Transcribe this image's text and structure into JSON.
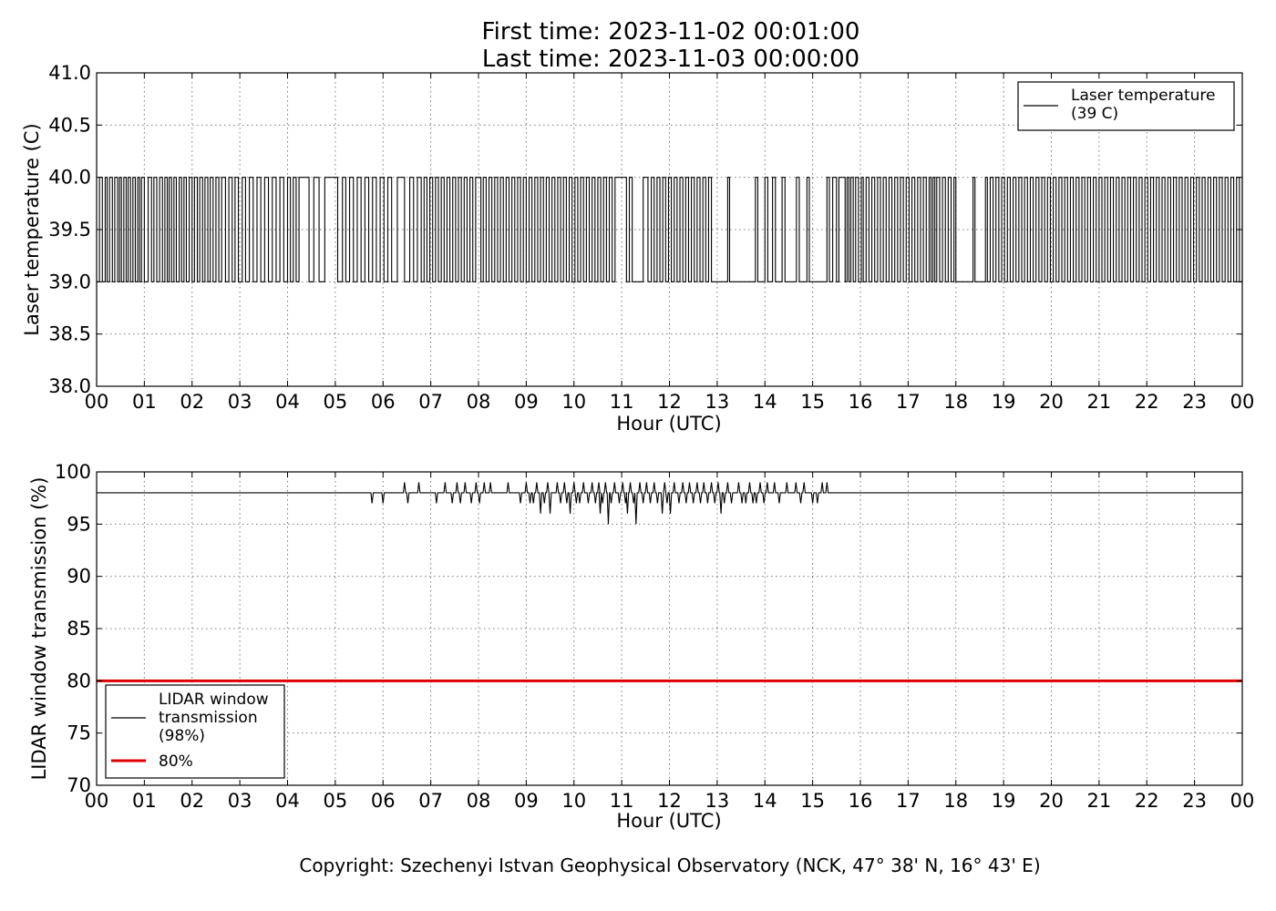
{
  "title_lines": [
    "First time: 2023-11-02 00:01:00",
    "Last time: 2023-11-03 00:00:00"
  ],
  "copyright": "Copyright: Szechenyi Istvan Geophysical Observatory (NCK, 47° 38' N, 16° 43' E)",
  "colors": {
    "series": "#000000",
    "threshold": "#e00000",
    "grid": "#7a7a7a"
  },
  "chart_data": [
    {
      "type": "line",
      "xlabel": "Hour (UTC)",
      "ylabel": "Laser temperature (C)",
      "xlim": [
        0,
        24
      ],
      "ylim": [
        38.0,
        41.0
      ],
      "x_tick_values": [
        0,
        1,
        2,
        3,
        4,
        5,
        6,
        7,
        8,
        9,
        10,
        11,
        12,
        13,
        14,
        15,
        16,
        17,
        18,
        19,
        20,
        21,
        22,
        23,
        24
      ],
      "x_tick_labels": [
        "00",
        "01",
        "02",
        "03",
        "04",
        "05",
        "06",
        "07",
        "08",
        "09",
        "10",
        "11",
        "12",
        "13",
        "14",
        "15",
        "16",
        "17",
        "18",
        "19",
        "20",
        "21",
        "22",
        "23",
        "00"
      ],
      "y_tick_values": [
        38.0,
        38.5,
        39.0,
        39.5,
        40.0,
        40.5,
        41.0
      ],
      "y_tick_labels": [
        "38.0",
        "38.5",
        "39.0",
        "39.5",
        "40.0",
        "40.5",
        "41.0"
      ],
      "grid": true,
      "legend_position": "top-right",
      "series": [
        {
          "name": "Laser temperature\n(39 C)",
          "color": "#000000",
          "kind": "binary-toggle",
          "levels": [
            39.0,
            40.0
          ],
          "toggle_times": [
            0.0,
            0.06,
            0.12,
            0.18,
            0.22,
            0.27,
            0.33,
            0.38,
            0.44,
            0.48,
            0.52,
            0.57,
            0.62,
            0.66,
            0.71,
            0.76,
            0.81,
            0.86,
            0.9,
            0.94,
            1.0,
            1.08,
            1.15,
            1.2,
            1.26,
            1.32,
            1.38,
            1.43,
            1.48,
            1.52,
            1.57,
            1.62,
            1.67,
            1.73,
            1.78,
            1.83,
            1.88,
            1.94,
            2.0,
            2.05,
            2.11,
            2.16,
            2.22,
            2.27,
            2.33,
            2.38,
            2.44,
            2.5,
            2.56,
            2.62,
            2.7,
            2.77,
            2.84,
            2.9,
            2.97,
            3.05,
            3.12,
            3.2,
            3.28,
            3.36,
            3.44,
            3.52,
            3.6,
            3.68,
            3.76,
            3.84,
            3.92,
            4.0,
            4.06,
            4.12,
            4.18,
            4.24,
            4.45,
            4.55,
            4.66,
            4.78,
            5.05,
            5.15,
            5.22,
            5.3,
            5.38,
            5.46,
            5.54,
            5.62,
            5.7,
            5.78,
            5.86,
            5.94,
            6.02,
            6.1,
            6.18,
            6.3,
            6.45,
            6.56,
            6.64,
            6.72,
            6.8,
            6.86,
            6.92,
            6.98,
            7.04,
            7.1,
            7.16,
            7.22,
            7.28,
            7.34,
            7.4,
            7.46,
            7.52,
            7.58,
            7.64,
            7.7,
            7.76,
            7.82,
            7.88,
            7.94,
            8.05,
            8.1,
            8.16,
            8.22,
            8.28,
            8.34,
            8.4,
            8.46,
            8.52,
            8.58,
            8.64,
            8.7,
            8.76,
            8.82,
            8.88,
            8.94,
            9.0,
            9.06,
            9.12,
            9.18,
            9.24,
            9.3,
            9.36,
            9.42,
            9.48,
            9.54,
            9.6,
            9.66,
            9.72,
            9.78,
            9.84,
            9.9,
            9.96,
            10.02,
            10.08,
            10.14,
            10.2,
            10.26,
            10.32,
            10.38,
            10.44,
            10.5,
            10.56,
            10.62,
            10.68,
            10.74,
            10.8,
            10.86,
            11.1,
            11.16,
            11.22,
            11.45,
            11.55,
            11.62,
            11.68,
            11.74,
            11.8,
            11.86,
            11.92,
            11.98,
            12.04,
            12.1,
            12.16,
            12.22,
            12.28,
            12.34,
            12.4,
            12.46,
            12.52,
            12.58,
            12.64,
            12.7,
            12.76,
            12.82,
            12.88,
            13.22,
            13.26,
            13.8,
            13.85,
            14.0,
            14.06,
            14.16,
            14.22,
            14.36,
            14.42,
            14.66,
            14.72,
            14.88,
            14.93,
            15.3,
            15.35,
            15.42,
            15.5,
            15.55,
            15.68,
            15.72,
            15.76,
            15.8,
            15.85,
            15.9,
            15.96,
            16.02,
            16.06,
            16.12,
            16.18,
            16.24,
            16.3,
            16.36,
            16.42,
            16.48,
            16.54,
            16.6,
            16.66,
            16.72,
            16.78,
            16.84,
            16.9,
            16.96,
            17.02,
            17.08,
            17.14,
            17.2,
            17.26,
            17.32,
            17.38,
            17.44,
            17.48,
            17.52,
            17.56,
            17.6,
            17.66,
            17.72,
            17.78,
            17.84,
            17.9,
            17.96,
            18.0,
            18.36,
            18.4,
            18.62,
            18.66,
            18.72,
            18.78,
            18.84,
            18.9,
            18.96,
            19.02,
            19.08,
            19.14,
            19.2,
            19.26,
            19.32,
            19.38,
            19.44,
            19.5,
            19.56,
            19.62,
            19.68,
            19.74,
            19.8,
            19.86,
            19.92,
            19.98,
            20.04,
            20.1,
            20.16,
            20.22,
            20.28,
            20.34,
            20.4,
            20.46,
            20.52,
            20.58,
            20.64,
            20.7,
            20.76,
            20.82,
            20.88,
            20.94,
            21.0,
            21.06,
            21.12,
            21.18,
            21.24,
            21.3,
            21.36,
            21.42,
            21.48,
            21.54,
            21.6,
            21.66,
            21.72,
            21.78,
            21.84,
            21.9,
            21.96,
            22.02,
            22.08,
            22.14,
            22.2,
            22.26,
            22.32,
            22.38,
            22.44,
            22.5,
            22.56,
            22.62,
            22.68,
            22.74,
            22.8,
            22.86,
            22.92,
            22.98,
            23.04,
            23.1,
            23.16,
            23.22,
            23.28,
            23.34,
            23.4,
            23.46,
            23.52,
            23.58,
            23.64,
            23.7,
            23.76,
            23.82,
            23.88,
            23.94,
            24.0
          ]
        }
      ]
    },
    {
      "type": "line",
      "xlabel": "Hour (UTC)",
      "ylabel": "LIDAR window transmission (%)",
      "xlim": [
        0,
        24
      ],
      "ylim": [
        70,
        100
      ],
      "x_tick_values": [
        0,
        1,
        2,
        3,
        4,
        5,
        6,
        7,
        8,
        9,
        10,
        11,
        12,
        13,
        14,
        15,
        16,
        17,
        18,
        19,
        20,
        21,
        22,
        23,
        24
      ],
      "x_tick_labels": [
        "00",
        "01",
        "02",
        "03",
        "04",
        "05",
        "06",
        "07",
        "08",
        "09",
        "10",
        "11",
        "12",
        "13",
        "14",
        "15",
        "16",
        "17",
        "18",
        "19",
        "20",
        "21",
        "22",
        "23",
        "00"
      ],
      "y_tick_values": [
        70,
        75,
        80,
        85,
        90,
        95,
        100
      ],
      "y_tick_labels": [
        "70",
        "75",
        "80",
        "85",
        "90",
        "95",
        "100"
      ],
      "grid": true,
      "legend_position": "bottom-left",
      "series": [
        {
          "name": "LIDAR window\ntransmission\n(98%)",
          "color": "#000000",
          "baseline": 98,
          "spikes": [
            [
              5.77,
              97
            ],
            [
              6.0,
              97
            ],
            [
              6.45,
              99
            ],
            [
              6.52,
              97
            ],
            [
              6.75,
              99
            ],
            [
              6.9,
              98
            ],
            [
              7.12,
              97
            ],
            [
              7.3,
              99
            ],
            [
              7.45,
              97
            ],
            [
              7.55,
              99
            ],
            [
              7.62,
              97
            ],
            [
              7.72,
              99
            ],
            [
              7.85,
              97
            ],
            [
              7.95,
              99
            ],
            [
              8.02,
              97
            ],
            [
              8.12,
              99
            ],
            [
              8.25,
              99
            ],
            [
              8.4,
              98
            ],
            [
              8.62,
              99
            ],
            [
              8.88,
              97
            ],
            [
              9.0,
              99
            ],
            [
              9.08,
              97
            ],
            [
              9.15,
              97
            ],
            [
              9.22,
              99
            ],
            [
              9.3,
              96
            ],
            [
              9.38,
              97
            ],
            [
              9.45,
              99
            ],
            [
              9.5,
              96
            ],
            [
              9.58,
              98
            ],
            [
              9.65,
              99
            ],
            [
              9.72,
              97
            ],
            [
              9.8,
              99
            ],
            [
              9.85,
              97
            ],
            [
              9.92,
              96
            ],
            [
              10.0,
              99
            ],
            [
              10.05,
              97
            ],
            [
              10.12,
              97
            ],
            [
              10.2,
              99
            ],
            [
              10.3,
              97
            ],
            [
              10.38,
              99
            ],
            [
              10.45,
              97
            ],
            [
              10.52,
              99
            ],
            [
              10.55,
              96
            ],
            [
              10.6,
              97
            ],
            [
              10.66,
              99
            ],
            [
              10.72,
              95
            ],
            [
              10.78,
              97
            ],
            [
              10.85,
              99
            ],
            [
              10.95,
              97
            ],
            [
              11.02,
              99
            ],
            [
              11.08,
              97
            ],
            [
              11.12,
              96
            ],
            [
              11.18,
              99
            ],
            [
              11.25,
              97
            ],
            [
              11.3,
              95
            ],
            [
              11.38,
              99
            ],
            [
              11.45,
              97
            ],
            [
              11.52,
              99
            ],
            [
              11.6,
              97
            ],
            [
              11.68,
              99
            ],
            [
              11.75,
              97
            ],
            [
              11.85,
              96
            ],
            [
              11.9,
              99
            ],
            [
              11.95,
              97
            ],
            [
              12.02,
              96
            ],
            [
              12.1,
              99
            ],
            [
              12.2,
              97
            ],
            [
              12.28,
              99
            ],
            [
              12.35,
              97
            ],
            [
              12.42,
              99
            ],
            [
              12.5,
              97
            ],
            [
              12.58,
              99
            ],
            [
              12.65,
              97
            ],
            [
              12.72,
              99
            ],
            [
              12.8,
              97
            ],
            [
              12.88,
              99
            ],
            [
              12.95,
              97
            ],
            [
              13.02,
              99
            ],
            [
              13.08,
              96
            ],
            [
              13.15,
              97
            ],
            [
              13.22,
              99
            ],
            [
              13.3,
              97
            ],
            [
              13.38,
              98
            ],
            [
              13.45,
              99
            ],
            [
              13.52,
              97
            ],
            [
              13.6,
              97
            ],
            [
              13.68,
              99
            ],
            [
              13.75,
              97
            ],
            [
              13.82,
              97
            ],
            [
              13.9,
              99
            ],
            [
              13.98,
              97
            ],
            [
              14.05,
              99
            ],
            [
              14.12,
              98
            ],
            [
              14.2,
              99
            ],
            [
              14.3,
              97
            ],
            [
              14.38,
              98
            ],
            [
              14.46,
              99
            ],
            [
              14.55,
              98
            ],
            [
              14.65,
              99
            ],
            [
              14.75,
              97
            ],
            [
              14.82,
              99
            ],
            [
              14.9,
              98
            ],
            [
              15.0,
              97
            ],
            [
              15.1,
              97
            ],
            [
              15.2,
              99
            ],
            [
              15.3,
              99
            ]
          ]
        },
        {
          "name": "80%",
          "color": "#e00000",
          "constant": 80
        }
      ]
    }
  ]
}
